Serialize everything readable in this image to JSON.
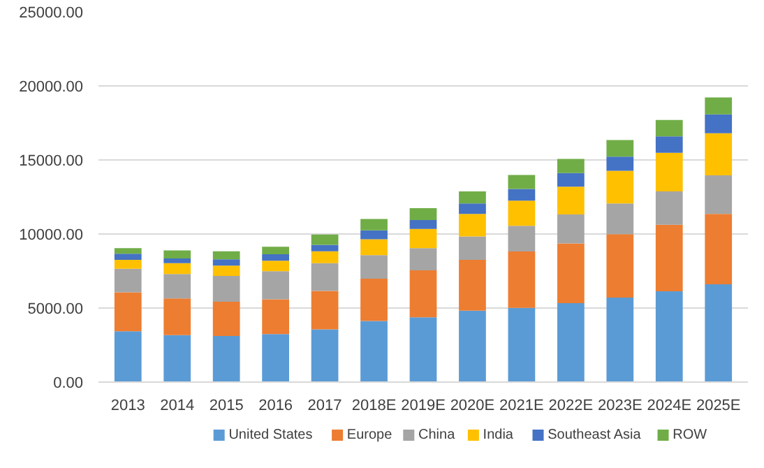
{
  "chart_data": {
    "type": "bar",
    "stacked": true,
    "categories": [
      "2013",
      "2014",
      "2015",
      "2016",
      "2017",
      "2018E",
      "2019E",
      "2020E",
      "2021E",
      "2022E",
      "2023E",
      "2024E",
      "2025E"
    ],
    "series": [
      {
        "name": "United States",
        "color": "#5b9bd5",
        "values": [
          3430,
          3170,
          3110,
          3240,
          3560,
          4130,
          4380,
          4820,
          5010,
          5330,
          5710,
          6130,
          6600
        ]
      },
      {
        "name": "Europe",
        "color": "#ed7d31",
        "values": [
          2630,
          2480,
          2320,
          2350,
          2600,
          2850,
          3170,
          3430,
          3810,
          4030,
          4280,
          4500,
          4760
        ]
      },
      {
        "name": "China",
        "color": "#a5a5a5",
        "values": [
          1590,
          1650,
          1740,
          1900,
          1870,
          1590,
          1490,
          1590,
          1740,
          1960,
          2070,
          2250,
          2600
        ]
      },
      {
        "name": "India",
        "color": "#ffc000",
        "values": [
          600,
          730,
          700,
          700,
          800,
          1080,
          1300,
          1520,
          1690,
          1880,
          2210,
          2600,
          2850
        ]
      },
      {
        "name": "Southeast Asia",
        "color": "#4472c4",
        "values": [
          420,
          320,
          420,
          440,
          440,
          600,
          600,
          700,
          790,
          920,
          950,
          1110,
          1270
        ]
      },
      {
        "name": "ROW",
        "color": "#70ad47",
        "values": [
          380,
          540,
          540,
          510,
          700,
          770,
          800,
          820,
          950,
          950,
          1120,
          1110,
          1140
        ]
      }
    ],
    "ylim": [
      0,
      25000
    ],
    "yticks": [
      {
        "value": 0,
        "label": "0.00"
      },
      {
        "value": 5000,
        "label": "5000.00"
      },
      {
        "value": 10000,
        "label": "10000.00"
      },
      {
        "value": 15000,
        "label": "15000.00"
      },
      {
        "value": 20000,
        "label": "20000.00"
      },
      {
        "value": 25000,
        "label": "25000.00"
      }
    ],
    "grid": "y",
    "legend": "bottom"
  }
}
